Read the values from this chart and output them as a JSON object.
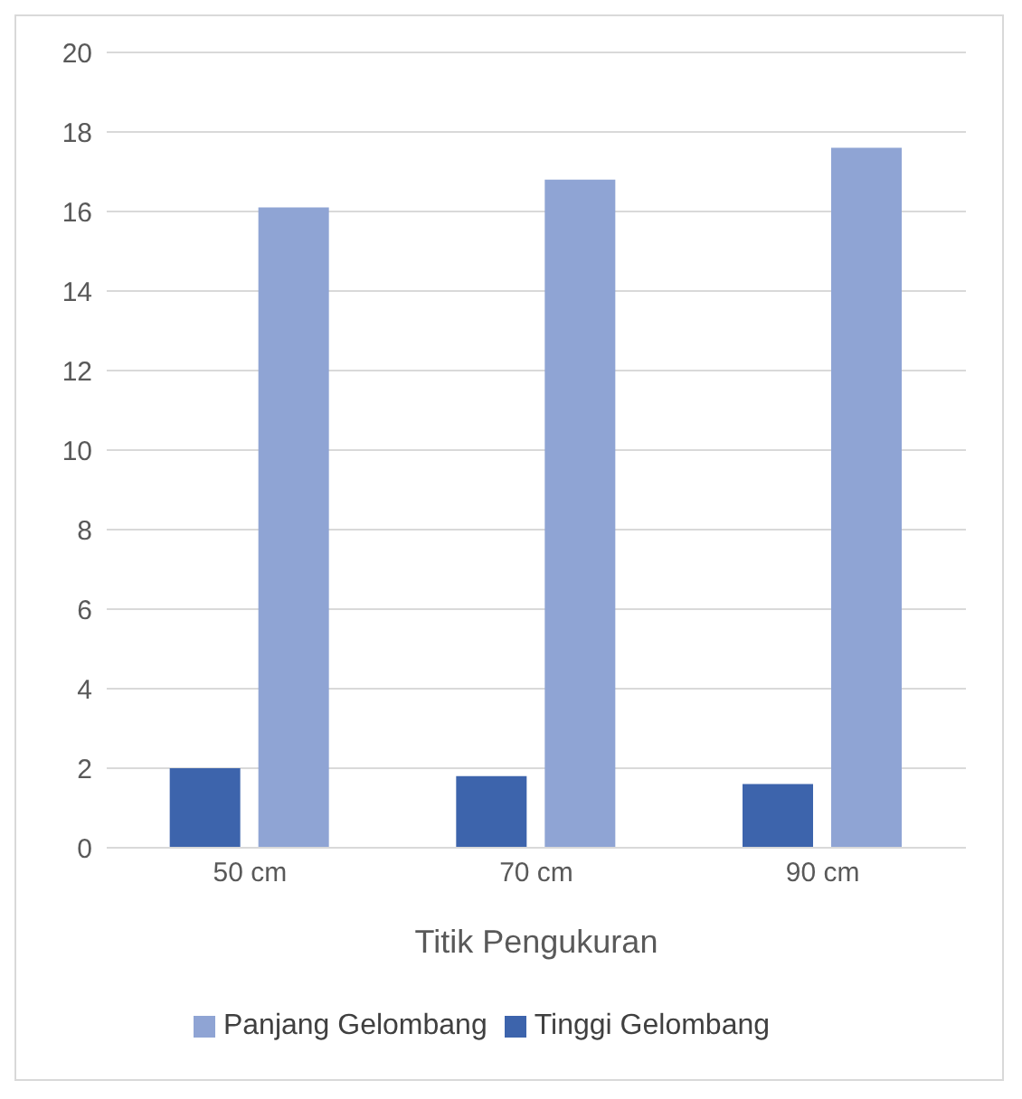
{
  "chart_data": {
    "type": "bar",
    "xlabel": "Titik Pengukuran",
    "categories": [
      "50 cm",
      "70 cm",
      "90 cm"
    ],
    "series": [
      {
        "name": "Tinggi Gelombang",
        "color": "#3d64ac",
        "values": [
          2.0,
          1.8,
          1.6
        ]
      },
      {
        "name": "Panjang Gelombang",
        "color": "#8fa4d4",
        "values": [
          16.1,
          16.8,
          17.6
        ]
      }
    ],
    "ylim": [
      0,
      20
    ],
    "yticks": [
      0,
      2,
      4,
      6,
      8,
      10,
      12,
      14,
      16,
      18,
      20
    ],
    "grid": "y",
    "legend": "bottom"
  }
}
